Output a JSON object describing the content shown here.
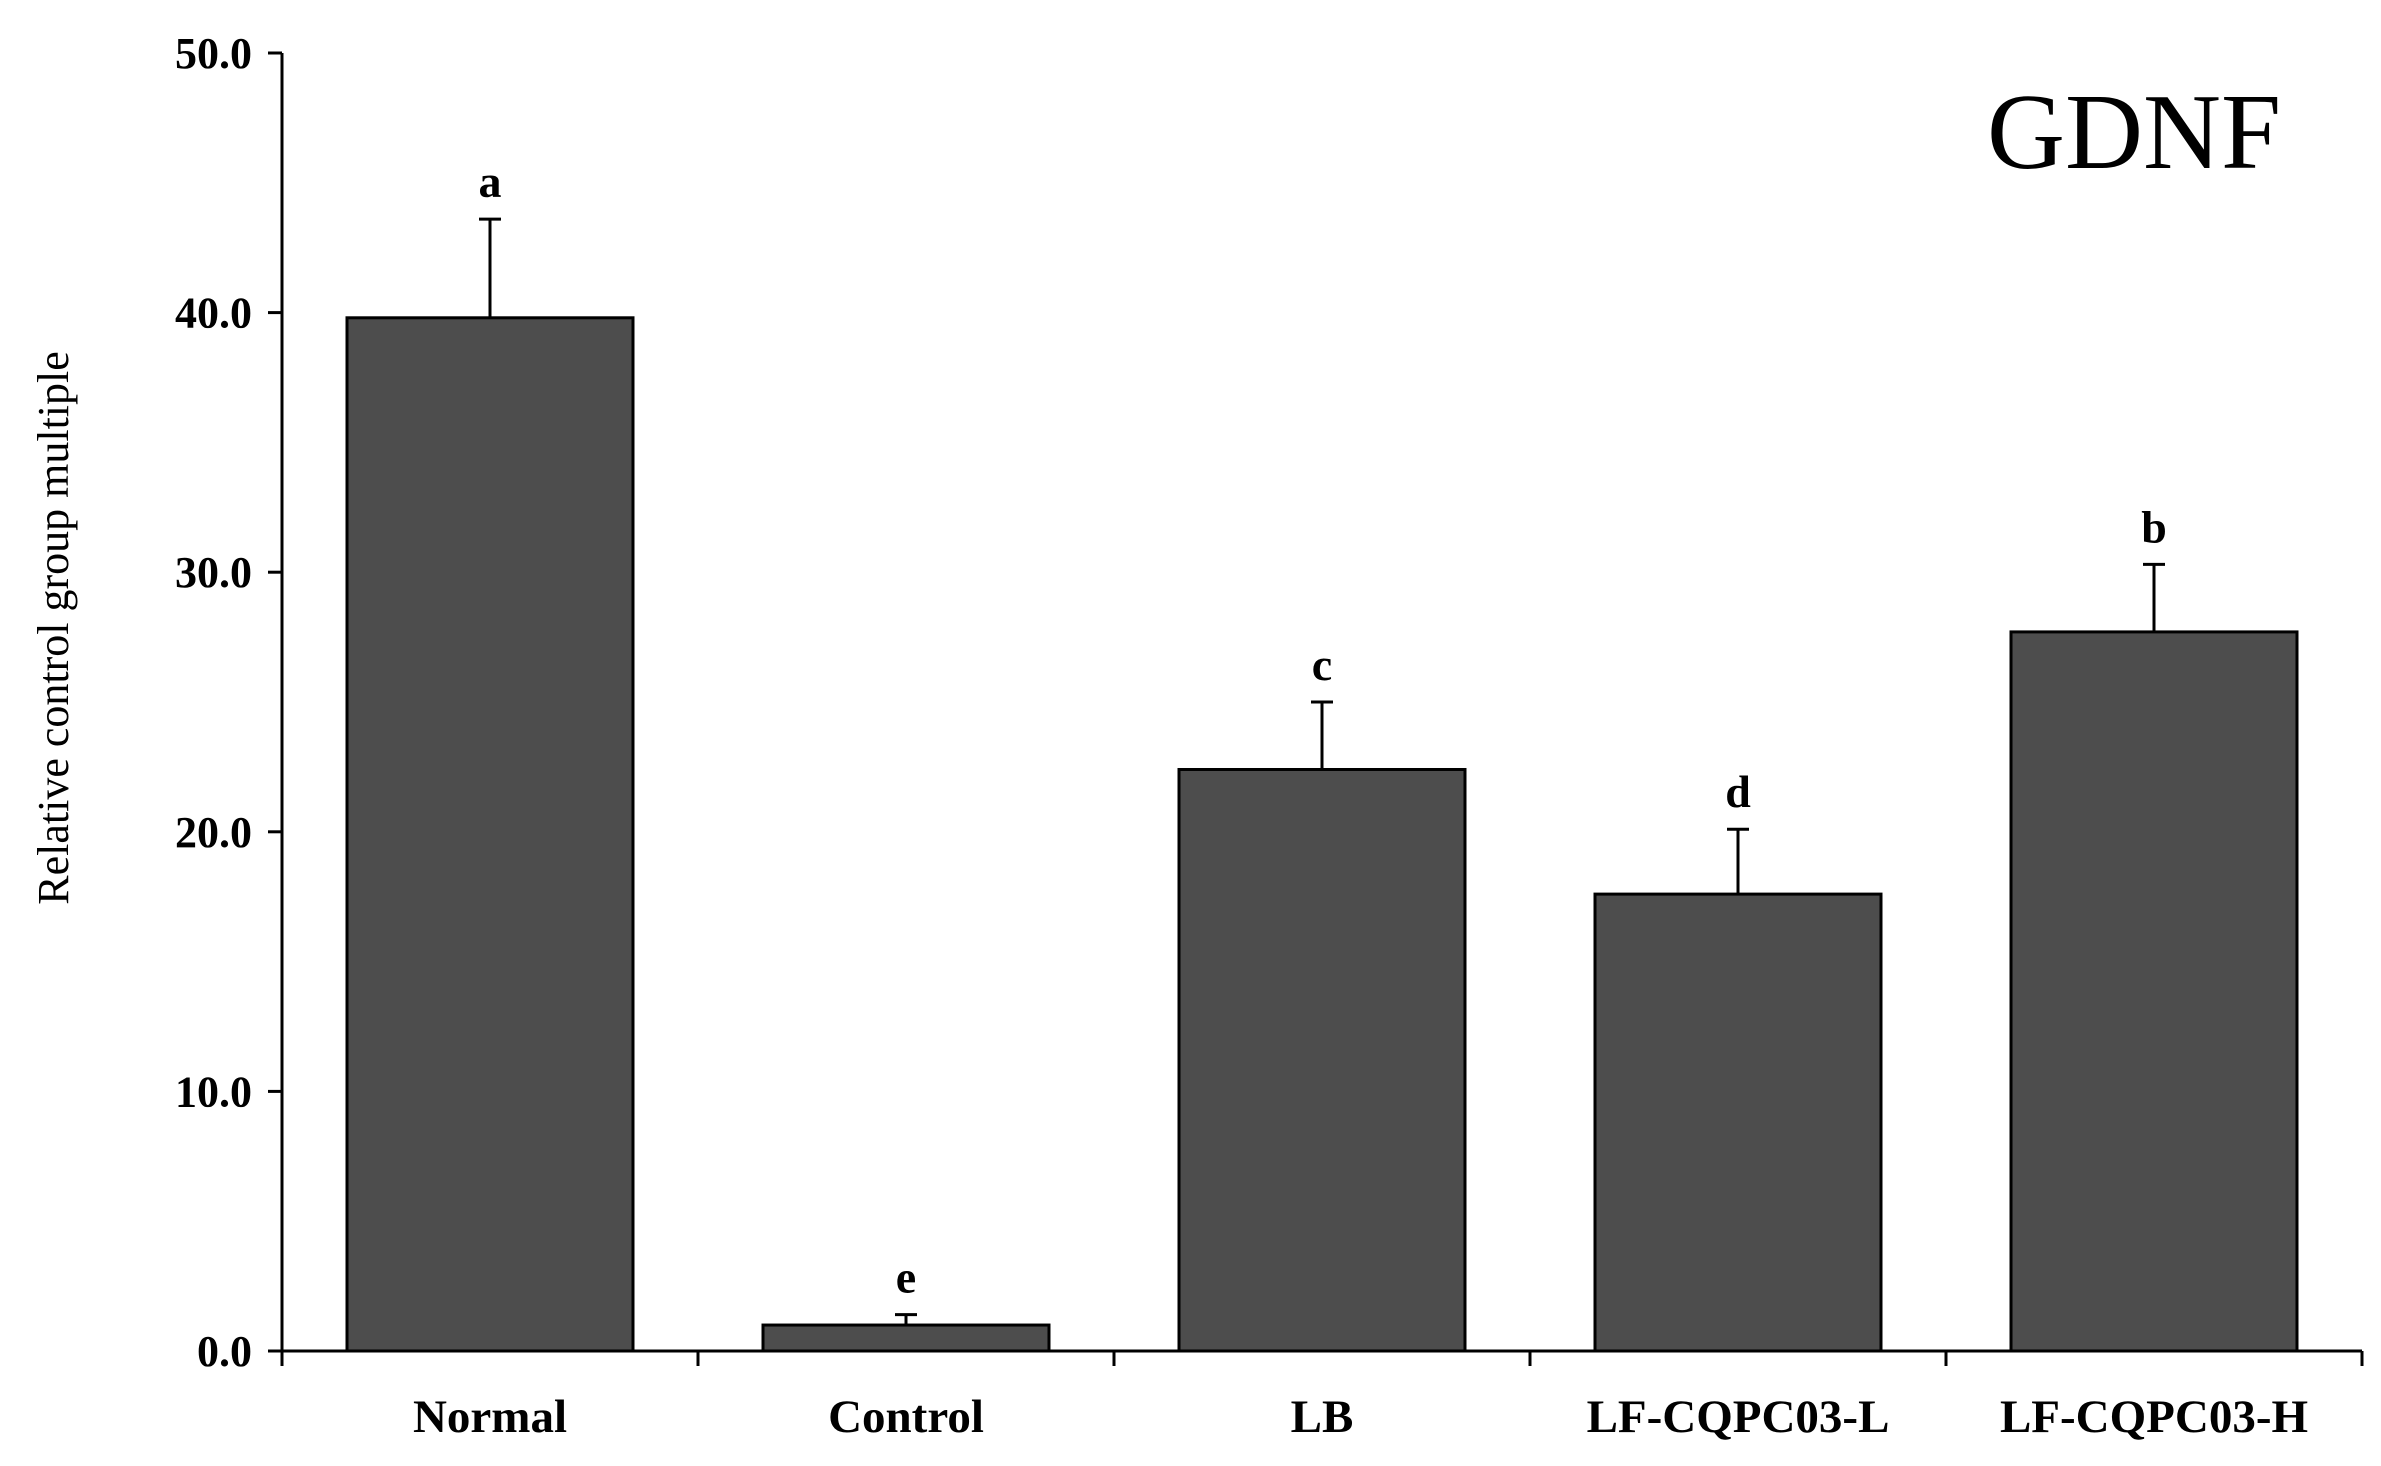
{
  "chart_data": {
    "type": "bar",
    "title": "GDNF",
    "xlabel": "",
    "ylabel": "Relative control group multiple",
    "ylim": [
      0,
      50
    ],
    "yticks": [
      "0.0",
      "10.0",
      "20.0",
      "30.0",
      "40.0",
      "50.0"
    ],
    "categories": [
      "Normal",
      "Control",
      "LB",
      "LF-CQPC03-L",
      "LF-CQPC03-H"
    ],
    "values": [
      39.8,
      1.0,
      22.4,
      17.6,
      27.7
    ],
    "errors": [
      3.8,
      0.4,
      2.6,
      2.5,
      2.6
    ],
    "significance": [
      "a",
      "e",
      "c",
      "d",
      "b"
    ],
    "bar_color": "#4d4d4d",
    "grid": false,
    "legend": "none"
  }
}
